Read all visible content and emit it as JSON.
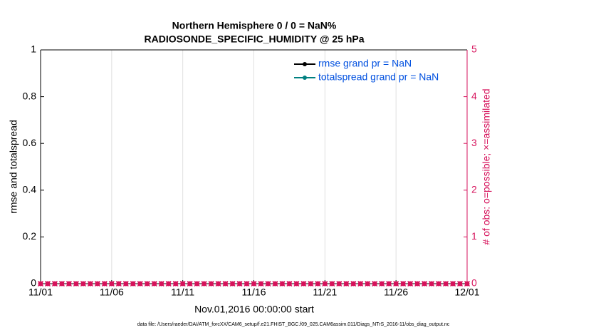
{
  "chart_data": {
    "type": "line",
    "title": "Northern Hemisphere 0 / 0 = NaN%",
    "subtitle": "RADIOSONDE_SPECIFIC_HUMIDITY @ 25 hPa",
    "ylabel": "rmse and totalspread",
    "y2label": "# of obs: o=possible; ×=assimilated",
    "xlabel": "Nov.01,2016 00:00:00 start",
    "footnote": "data file: /Users/raeder/DAI/ATM_forcXX/CAM6_setup/f.e21.FHIST_BGC.f09_025.CAM6assim.011/Diags_NTrS_2016-11/obs_diag_output.nc",
    "x": [
      0,
      0.5,
      1,
      1.5,
      2,
      2.5,
      3,
      3.5,
      4,
      4.5,
      5,
      5.5,
      6,
      6.5,
      7,
      7.5,
      8,
      8.5,
      9,
      9.5,
      10,
      10.5,
      11,
      11.5,
      12,
      12.5,
      13,
      13.5,
      14,
      14.5,
      15,
      15.5,
      16,
      16.5,
      17,
      17.5,
      18,
      18.5,
      19,
      19.5,
      20,
      20.5,
      21,
      21.5,
      22,
      22.5,
      23,
      23.5,
      24,
      24.5,
      25,
      25.5,
      26,
      26.5,
      27,
      27.5,
      28,
      28.5,
      29,
      29.5,
      30
    ],
    "series": [
      {
        "name": "rmse grand pr = NaN",
        "color": "#000000",
        "values": [
          null,
          null,
          null,
          null,
          null,
          null,
          null,
          null,
          null,
          null,
          null,
          null,
          null,
          null,
          null,
          null,
          null,
          null,
          null,
          null,
          null,
          null,
          null,
          null,
          null,
          null,
          null,
          null,
          null,
          null,
          null,
          null,
          null,
          null,
          null,
          null,
          null,
          null,
          null,
          null,
          null,
          null,
          null,
          null,
          null,
          null,
          null,
          null,
          null,
          null,
          null,
          null,
          null,
          null,
          null,
          null,
          null,
          null,
          null,
          null,
          null
        ]
      },
      {
        "name": "totalspread grand pr = NaN",
        "color": "#008080",
        "values": [
          null,
          null,
          null,
          null,
          null,
          null,
          null,
          null,
          null,
          null,
          null,
          null,
          null,
          null,
          null,
          null,
          null,
          null,
          null,
          null,
          null,
          null,
          null,
          null,
          null,
          null,
          null,
          null,
          null,
          null,
          null,
          null,
          null,
          null,
          null,
          null,
          null,
          null,
          null,
          null,
          null,
          null,
          null,
          null,
          null,
          null,
          null,
          null,
          null,
          null,
          null,
          null,
          null,
          null,
          null,
          null,
          null,
          null,
          null,
          null,
          null
        ]
      },
      {
        "axis": "y2",
        "marker": "o",
        "color": "#d6125b",
        "values": [
          0,
          0,
          0,
          0,
          0,
          0,
          0,
          0,
          0,
          0,
          0,
          0,
          0,
          0,
          0,
          0,
          0,
          0,
          0,
          0,
          0,
          0,
          0,
          0,
          0,
          0,
          0,
          0,
          0,
          0,
          0,
          0,
          0,
          0,
          0,
          0,
          0,
          0,
          0,
          0,
          0,
          0,
          0,
          0,
          0,
          0,
          0,
          0,
          0,
          0,
          0,
          0,
          0,
          0,
          0,
          0,
          0,
          0,
          0,
          0,
          0
        ]
      },
      {
        "axis": "y2",
        "marker": "x",
        "color": "#d6125b",
        "values": [
          0,
          0,
          0,
          0,
          0,
          0,
          0,
          0,
          0,
          0,
          0,
          0,
          0,
          0,
          0,
          0,
          0,
          0,
          0,
          0,
          0,
          0,
          0,
          0,
          0,
          0,
          0,
          0,
          0,
          0,
          0,
          0,
          0,
          0,
          0,
          0,
          0,
          0,
          0,
          0,
          0,
          0,
          0,
          0,
          0,
          0,
          0,
          0,
          0,
          0,
          0,
          0,
          0,
          0,
          0,
          0,
          0,
          0,
          0,
          0,
          0
        ]
      }
    ],
    "xlim": [
      0,
      30
    ],
    "xticks": [
      {
        "value": 0,
        "label": "11/01"
      },
      {
        "value": 5,
        "label": "11/06"
      },
      {
        "value": 10,
        "label": "11/11"
      },
      {
        "value": 15,
        "label": "11/16"
      },
      {
        "value": 20,
        "label": "11/21"
      },
      {
        "value": 25,
        "label": "11/26"
      },
      {
        "value": 30,
        "label": "12/01"
      }
    ],
    "ylim": [
      0,
      1
    ],
    "yticks": [
      0,
      0.2,
      0.4,
      0.6,
      0.8,
      1
    ],
    "y2lim": [
      0,
      5
    ],
    "y2ticks": [
      0,
      1,
      2,
      3,
      4,
      5
    ],
    "y2color": "#d6125b",
    "legend_text_color": "#0050e0",
    "grid": "x",
    "legend": "upper right"
  }
}
